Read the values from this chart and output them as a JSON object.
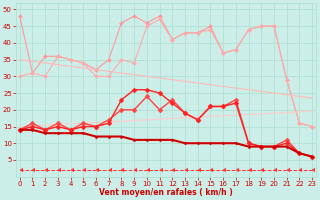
{
  "x": [
    0,
    1,
    2,
    3,
    4,
    5,
    6,
    7,
    8,
    9,
    10,
    11,
    12,
    13,
    14,
    15,
    16,
    17,
    18,
    19,
    20,
    21,
    22,
    23
  ],
  "series": [
    {
      "name": "light_pink_spiky",
      "color": "#ff9999",
      "lw": 0.8,
      "marker": "D",
      "markersize": 2,
      "linestyle": "-",
      "y": [
        48,
        31,
        36,
        36,
        35,
        34,
        32,
        35,
        46,
        48,
        46,
        48,
        41,
        43,
        43,
        45,
        37,
        38,
        44,
        45,
        45,
        29,
        16,
        15
      ]
    },
    {
      "name": "light_pink_lower",
      "color": "#ffaaaa",
      "lw": 0.8,
      "marker": "D",
      "markersize": 2,
      "linestyle": "-",
      "y": [
        30,
        31,
        30,
        36,
        35,
        34,
        30,
        30,
        35,
        34,
        45,
        47,
        41,
        43,
        43,
        44,
        37,
        38,
        44,
        45,
        45,
        29,
        16,
        15
      ]
    },
    {
      "name": "diag_upper",
      "color": "#ffbbbb",
      "lw": 0.8,
      "marker": null,
      "markersize": 0,
      "linestyle": "-",
      "y": [
        35,
        34.5,
        34,
        33.5,
        33,
        32.5,
        32,
        31.5,
        31,
        30.5,
        30,
        29.5,
        29,
        28.5,
        28,
        27.5,
        27,
        26.5,
        26,
        25.5,
        25,
        24.5,
        24,
        23.5
      ]
    },
    {
      "name": "diag_lower",
      "color": "#ffcccc",
      "lw": 0.8,
      "marker": null,
      "markersize": 0,
      "linestyle": "-",
      "y": [
        15,
        15.2,
        15.4,
        15.6,
        15.8,
        16,
        16.2,
        16.4,
        16.6,
        16.8,
        17,
        17.2,
        17.4,
        17.6,
        17.8,
        18,
        18.2,
        18.4,
        18.6,
        18.8,
        19,
        19.2,
        19.4,
        19.6
      ]
    },
    {
      "name": "medium_red_1",
      "color": "#ff4444",
      "lw": 1.0,
      "marker": "D",
      "markersize": 2.5,
      "linestyle": "-",
      "y": [
        14,
        16,
        14,
        16,
        14,
        16,
        15,
        17,
        20,
        20,
        24,
        20,
        23,
        19,
        17,
        21,
        21,
        23,
        10,
        9,
        9,
        11,
        7,
        6
      ]
    },
    {
      "name": "medium_red_2",
      "color": "#ff2222",
      "lw": 1.0,
      "marker": "D",
      "markersize": 2.5,
      "linestyle": "-",
      "y": [
        14,
        15,
        14,
        15,
        14,
        15,
        15,
        16,
        23,
        26,
        26,
        25,
        22,
        19,
        17,
        21,
        21,
        22,
        10,
        9,
        9,
        10,
        7,
        6
      ]
    },
    {
      "name": "dark_red_flat",
      "color": "#cc0000",
      "lw": 1.5,
      "marker": "D",
      "markersize": 1.5,
      "linestyle": "-",
      "y": [
        14,
        14,
        13,
        13,
        13,
        13,
        12,
        12,
        12,
        11,
        11,
        11,
        11,
        10,
        10,
        10,
        10,
        10,
        9,
        9,
        9,
        9,
        7,
        6
      ]
    },
    {
      "name": "dashed_bottom",
      "color": "#ff3333",
      "lw": 0.7,
      "marker": 4,
      "markersize": 3,
      "linestyle": "--",
      "y": [
        2,
        2,
        2,
        2,
        2,
        2,
        2,
        2,
        2,
        2,
        2,
        2,
        2,
        2,
        2,
        2,
        2,
        2,
        2,
        2,
        2,
        2,
        2,
        2
      ]
    }
  ],
  "xlim": [
    -0.3,
    23.3
  ],
  "ylim": [
    0,
    52
  ],
  "yticks": [
    5,
    10,
    15,
    20,
    25,
    30,
    35,
    40,
    45,
    50
  ],
  "xticks": [
    0,
    1,
    2,
    3,
    4,
    5,
    6,
    7,
    8,
    9,
    10,
    11,
    12,
    13,
    14,
    15,
    16,
    17,
    18,
    19,
    20,
    21,
    22,
    23
  ],
  "xlabel": "Vent moyen/en rafales ( km/h )",
  "bg_color": "#cceee8",
  "grid_color": "#aaddcc",
  "tick_color": "#cc0000",
  "label_color": "#cc0000"
}
